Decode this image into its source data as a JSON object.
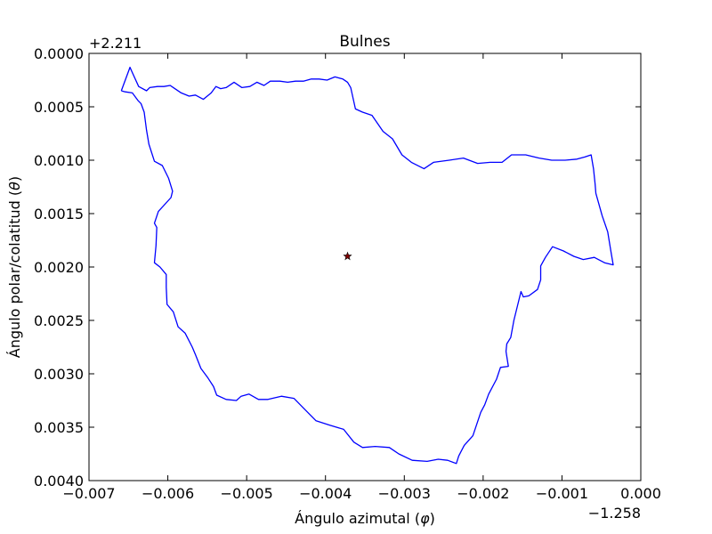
{
  "chart_data": {
    "type": "line",
    "title": "Bulnes",
    "xlabel": "Ángulo azimutal ($\\varphi$)",
    "ylabel": "Ángulo polar/colatitud ($\\theta$)",
    "x_offset_label": "−1.258",
    "y_offset_label": "+2.211",
    "xlim": [
      -0.007,
      0.0
    ],
    "ylim": [
      0.004,
      0.0
    ],
    "y_inverted": true,
    "grid": false,
    "xticks": [
      {
        "value": -0.007,
        "label": "−0.007"
      },
      {
        "value": -0.006,
        "label": "−0.006"
      },
      {
        "value": -0.005,
        "label": "−0.005"
      },
      {
        "value": -0.004,
        "label": "−0.004"
      },
      {
        "value": -0.003,
        "label": "−0.003"
      },
      {
        "value": -0.002,
        "label": "−0.002"
      },
      {
        "value": -0.001,
        "label": "−0.001"
      },
      {
        "value": 0.0,
        "label": "0.000"
      }
    ],
    "yticks": [
      {
        "value": 0.0,
        "label": "0.0000"
      },
      {
        "value": 0.0005,
        "label": "0.0005"
      },
      {
        "value": 0.001,
        "label": "0.0010"
      },
      {
        "value": 0.0015,
        "label": "0.0015"
      },
      {
        "value": 0.002,
        "label": "0.0020"
      },
      {
        "value": 0.0025,
        "label": "0.0025"
      },
      {
        "value": 0.003,
        "label": "0.0030"
      },
      {
        "value": 0.0035,
        "label": "0.0035"
      },
      {
        "value": 0.004,
        "label": "0.0040"
      }
    ],
    "series": [
      {
        "type": "line",
        "color": "#0000ff",
        "x": [
          -0.00659,
          -0.00648,
          -0.00645,
          -0.00637,
          -0.00627,
          -0.00623,
          -0.00613,
          -0.00605,
          -0.00597,
          -0.00593,
          -0.00583,
          -0.00573,
          -0.00565,
          -0.00555,
          -0.00545,
          -0.00539,
          -0.00533,
          -0.00526,
          -0.00516,
          -0.00506,
          -0.00496,
          -0.00487,
          -0.00478,
          -0.0047,
          -0.00458,
          -0.00448,
          -0.00438,
          -0.00428,
          -0.00418,
          -0.00408,
          -0.00398,
          -0.00388,
          -0.00378,
          -0.00372,
          -0.00368,
          -0.00362,
          -0.00353,
          -0.00341,
          -0.00327,
          -0.00315,
          -0.00303,
          -0.00291,
          -0.00275,
          -0.00263,
          -0.00243,
          -0.00225,
          -0.00207,
          -0.00191,
          -0.00176,
          -0.00164,
          -0.00146,
          -0.00129,
          -0.00113,
          -0.00096,
          -0.00081,
          -0.00071,
          -0.00063,
          -0.0006,
          -0.00058,
          -0.00057,
          -0.00049,
          -0.00042,
          -0.00038,
          -0.00035,
          -0.00046,
          -0.00059,
          -0.00073,
          -0.00085,
          -0.00098,
          -0.00112,
          -0.00121,
          -0.00127,
          -0.00127,
          -0.00131,
          -0.00142,
          -0.00149,
          -0.00152,
          -0.00161,
          -0.00165,
          -0.0017,
          -0.00171,
          -0.00168,
          -0.00178,
          -0.00183,
          -0.00193,
          -0.00198,
          -0.00203,
          -0.00213,
          -0.00224,
          -0.00231,
          -0.00234,
          -0.00245,
          -0.00257,
          -0.00271,
          -0.0029,
          -0.00307,
          -0.00319,
          -0.00337,
          -0.00353,
          -0.00364,
          -0.00377,
          -0.00395,
          -0.00412,
          -0.00428,
          -0.0044,
          -0.00456,
          -0.00473,
          -0.00485,
          -0.00497,
          -0.00507,
          -0.00513,
          -0.00526,
          -0.00538,
          -0.00542,
          -0.00549,
          -0.00558,
          -0.00565,
          -0.00569,
          -0.00578,
          -0.00587,
          -0.00593,
          -0.00601,
          -0.00602,
          -0.00602,
          -0.0061,
          -0.00617,
          -0.00615,
          -0.00614,
          -0.00617,
          -0.00612,
          -0.00596,
          -0.00594,
          -0.00599,
          -0.00607,
          -0.00617,
          -0.00624,
          -0.00627,
          -0.0063,
          -0.00634,
          -0.00638,
          -0.00645,
          -0.00654,
          -0.00659
        ],
        "y": [
          0.00035,
          0.00013,
          0.00018,
          0.00031,
          0.00035,
          0.00032,
          0.00031,
          0.00031,
          0.0003,
          0.00032,
          0.00037,
          0.0004,
          0.00039,
          0.00043,
          0.00037,
          0.00031,
          0.00033,
          0.00032,
          0.00027,
          0.00032,
          0.00031,
          0.00027,
          0.0003,
          0.00026,
          0.00026,
          0.00027,
          0.00026,
          0.00026,
          0.00024,
          0.00024,
          0.00025,
          0.00022,
          0.00024,
          0.00027,
          0.00032,
          0.00052,
          0.00055,
          0.00058,
          0.00073,
          0.0008,
          0.00095,
          0.00102,
          0.00108,
          0.00102,
          0.001,
          0.00098,
          0.00103,
          0.00102,
          0.00102,
          0.00095,
          0.00095,
          0.00098,
          0.001,
          0.001,
          0.00099,
          0.00097,
          0.00095,
          0.00108,
          0.00122,
          0.00131,
          0.00152,
          0.00167,
          0.00185,
          0.00198,
          0.00196,
          0.00191,
          0.00193,
          0.0019,
          0.00185,
          0.00181,
          0.00191,
          0.00199,
          0.00212,
          0.00221,
          0.00227,
          0.00228,
          0.00223,
          0.0025,
          0.00266,
          0.00272,
          0.00279,
          0.00293,
          0.00294,
          0.00305,
          0.00319,
          0.00329,
          0.00336,
          0.00358,
          0.00367,
          0.00377,
          0.00384,
          0.00381,
          0.0038,
          0.00382,
          0.00381,
          0.00375,
          0.00369,
          0.00368,
          0.00369,
          0.00364,
          0.00352,
          0.00348,
          0.00344,
          0.00332,
          0.00323,
          0.00321,
          0.00324,
          0.00324,
          0.00319,
          0.00321,
          0.00325,
          0.00324,
          0.0032,
          0.00312,
          0.00304,
          0.00295,
          0.00282,
          0.00275,
          0.00262,
          0.00256,
          0.00242,
          0.00235,
          0.00219,
          0.00207,
          0.002,
          0.00196,
          0.0018,
          0.00163,
          0.00159,
          0.00148,
          0.00135,
          0.00129,
          0.00117,
          0.00105,
          0.00101,
          0.00085,
          0.00072,
          0.00055,
          0.00047,
          0.00044,
          0.00037,
          0.00036,
          0.00035
        ]
      },
      {
        "type": "scatter",
        "marker": "star",
        "color": "#800000",
        "x": [
          -0.00372
        ],
        "y": [
          0.0019
        ]
      }
    ]
  }
}
